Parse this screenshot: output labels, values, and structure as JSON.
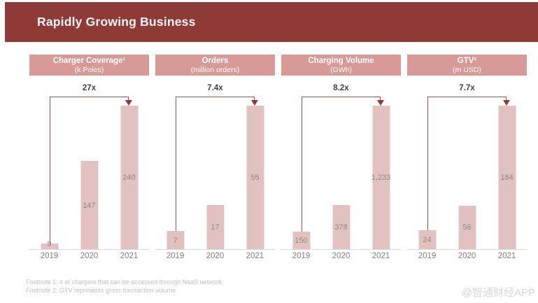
{
  "slide_title": "Rapidly Growing Business",
  "colors": {
    "banner_background": "#8e3a36",
    "panel_header_background": "#d89a97",
    "bar_fill": "#e2c2c0",
    "arrow_line": "#a3514e",
    "arrow_head": "#943634",
    "multiplier_text": "#3f3f3f",
    "value_label_text": "#8c8885",
    "year_label_text": "#7f7f7f",
    "baseline": "#d9d9d9",
    "footnote_text": "#c2bfbf",
    "watermark_text": "#d9d6d6"
  },
  "chart_data": [
    {
      "type": "bar",
      "title": "Charger Coverage¹",
      "subtitle": "(k Poles)",
      "growth_label": "27x",
      "categories": [
        "2019",
        "2020",
        "2021"
      ],
      "values": [
        9,
        147,
        240
      ],
      "value_labels": [
        "9",
        "147",
        "240"
      ],
      "ylim": [
        0,
        240
      ],
      "grid": false,
      "legend": false
    },
    {
      "type": "bar",
      "title": "Orders",
      "subtitle": "(million orders)",
      "growth_label": "7.4x",
      "categories": [
        "2019",
        "2020",
        "2021"
      ],
      "values": [
        7,
        17,
        55
      ],
      "value_labels": [
        "7",
        "17",
        "55"
      ],
      "ylim": [
        0,
        55
      ],
      "grid": false,
      "legend": false
    },
    {
      "type": "bar",
      "title": "Charging Volume",
      "subtitle": "(GWh)",
      "growth_label": "8.2x",
      "categories": [
        "2019",
        "2020",
        "2021"
      ],
      "values": [
        150,
        378,
        1233
      ],
      "value_labels": [
        "150",
        "378",
        "1,233"
      ],
      "ylim": [
        0,
        1233
      ],
      "grid": false,
      "legend": false
    },
    {
      "type": "bar",
      "title": "GTV²",
      "subtitle": "(m USD)",
      "growth_label": "7.7x",
      "categories": [
        "2019",
        "2020",
        "2021"
      ],
      "values": [
        24,
        56,
        184
      ],
      "value_labels": [
        "24",
        "56",
        "184"
      ],
      "ylim": [
        0,
        184
      ],
      "grid": false,
      "legend": false
    }
  ],
  "footnotes": [
    "Footnote 1: # of chargers that can be accessed through NaaS network",
    "Footnote 2: GTV represents gross transaction volume"
  ],
  "watermark": "@智通财经APP"
}
